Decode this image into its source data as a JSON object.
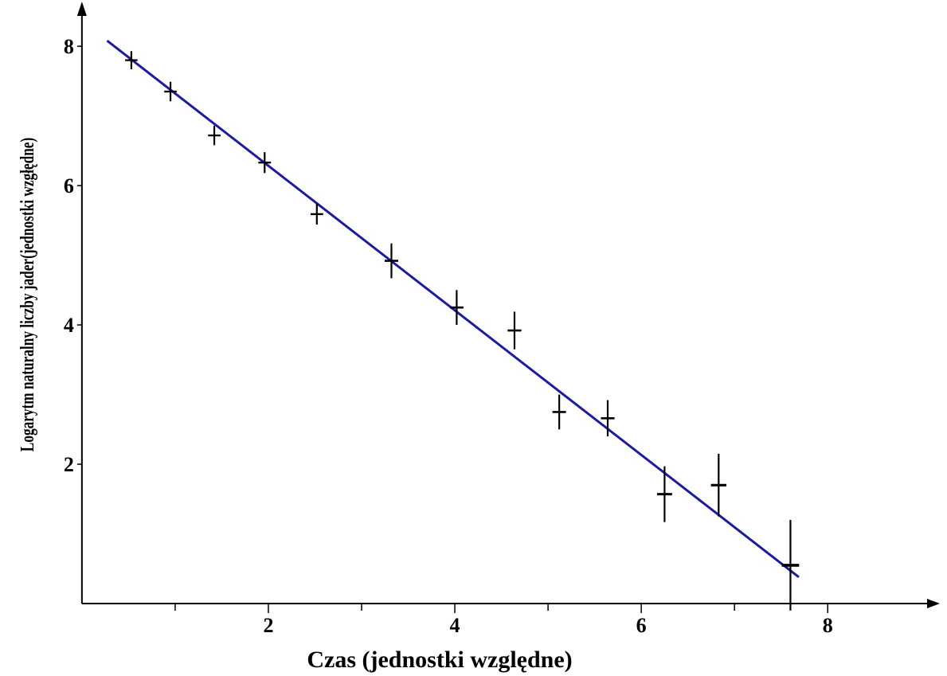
{
  "chart_data": {
    "type": "scatter",
    "title": "",
    "xlabel": "Czas (jednostki względne)",
    "ylabel": "Logarytm naturalny liczby jader(jednostki wzgłędne)",
    "xlim": [
      -0.05,
      9.1
    ],
    "ylim": [
      0,
      8.55
    ],
    "xticks": [
      2,
      4,
      6,
      8
    ],
    "yticks": [
      2,
      4,
      6,
      8
    ],
    "x_minor_ticks": [
      1,
      2,
      3,
      4,
      5,
      6,
      7,
      8
    ],
    "y_minor_ticks": [
      2,
      4,
      6,
      8
    ],
    "grid": false,
    "legend": "none",
    "series": [
      {
        "kind": "errorbar",
        "color": "#000000",
        "points": [
          {
            "x": 0.53,
            "y": 7.8,
            "err": 0.13
          },
          {
            "x": 0.95,
            "y": 7.35,
            "err": 0.14
          },
          {
            "x": 1.42,
            "y": 6.72,
            "err": 0.14
          },
          {
            "x": 1.96,
            "y": 6.33,
            "err": 0.15
          },
          {
            "x": 2.52,
            "y": 5.59,
            "err": 0.15
          },
          {
            "x": 3.32,
            "y": 4.92,
            "err": 0.25
          },
          {
            "x": 4.02,
            "y": 4.25,
            "err": 0.25
          },
          {
            "x": 4.64,
            "y": 3.92,
            "err": 0.27
          },
          {
            "x": 5.12,
            "y": 2.75,
            "err": 0.25
          },
          {
            "x": 5.64,
            "y": 2.66,
            "err": 0.26
          },
          {
            "x": 6.25,
            "y": 1.57,
            "err": 0.4
          },
          {
            "x": 6.83,
            "y": 1.7,
            "err": 0.45
          },
          {
            "x": 7.6,
            "y": 0.55,
            "err": 0.65
          }
        ]
      },
      {
        "kind": "line",
        "color": "#1a1aa6",
        "x": [
          0.27,
          7.69
        ],
        "y": [
          8.08,
          0.38
        ]
      }
    ]
  }
}
